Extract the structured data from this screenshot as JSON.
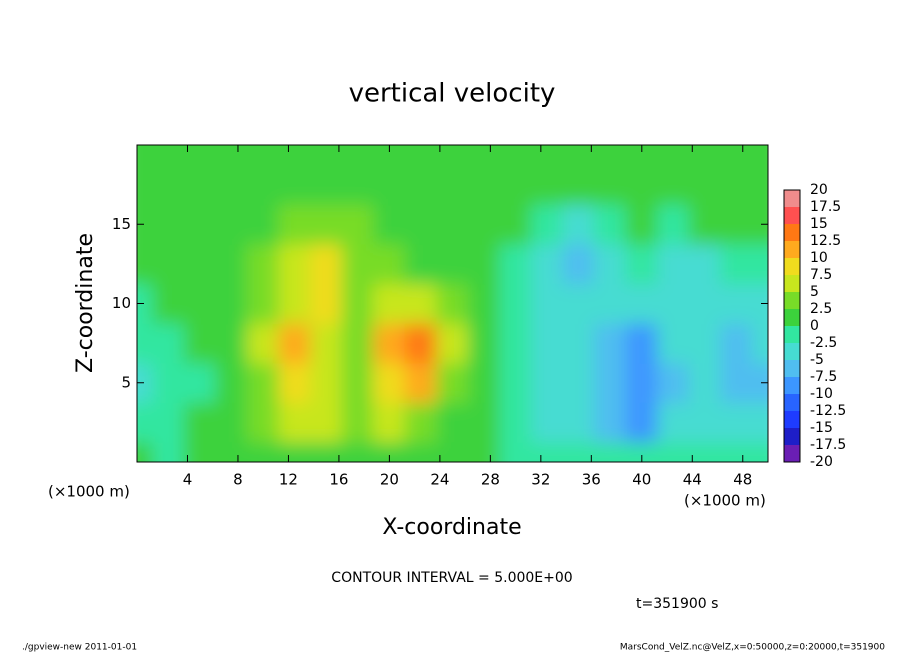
{
  "chart_data": {
    "type": "contour",
    "title": "vertical velocity",
    "xlabel": "X-coordinate",
    "ylabel": "Z-coordinate",
    "xunit": "(×1000 m)",
    "yunit": "(×1000 m)",
    "annotation": "CONTOUR INTERVAL = 5.000E+00",
    "time_label": "t=351900 s",
    "footer_left": "./gpview-new  2011-01-01",
    "footer_right": "MarsCond_VelZ.nc@VelZ,x=0:50000,z=0:20000,t=351900",
    "xlim": [
      0,
      50
    ],
    "ylim": [
      0,
      20
    ],
    "xticks": [
      4,
      8,
      12,
      16,
      20,
      24,
      28,
      32,
      36,
      40,
      44,
      48
    ],
    "yticks": [
      5,
      10,
      15
    ],
    "x": [
      0,
      2.5,
      5,
      7.5,
      10,
      12.5,
      15,
      17.5,
      20,
      22.5,
      25,
      27.5,
      30,
      32.5,
      35,
      37.5,
      40,
      42.5,
      45,
      47.5,
      50
    ],
    "y": [
      0,
      2.5,
      5,
      7.5,
      10,
      12.5,
      15,
      17.5,
      20
    ],
    "z": [
      [
        0,
        -1,
        0,
        1,
        1,
        2,
        2,
        1,
        2,
        1,
        1,
        0,
        -1,
        -1,
        -2,
        -2,
        -1,
        -1,
        -1,
        -1,
        -1
      ],
      [
        -1,
        -1,
        0,
        1,
        3,
        5,
        7,
        3,
        5,
        4,
        2,
        1,
        -1,
        -3,
        -4,
        -6,
        -8,
        -5,
        -4,
        -5,
        -4
      ],
      [
        -3,
        -2,
        -1,
        1,
        4,
        9,
        6,
        4,
        9,
        10,
        4,
        1,
        -1,
        -3,
        -4,
        -7,
        -10,
        -6,
        -5,
        -7,
        -6
      ],
      [
        -2,
        -1,
        0,
        1,
        5,
        11,
        5,
        4,
        12,
        13,
        5,
        1,
        -1,
        -3,
        -3,
        -6,
        -8,
        -5,
        -4,
        -6,
        -5
      ],
      [
        -1,
        0,
        0,
        1,
        3,
        6,
        8,
        4,
        6,
        6,
        3,
        1,
        -1,
        -3,
        -4,
        -5,
        -5,
        -3,
        -4,
        -5,
        -4
      ],
      [
        0,
        0,
        0,
        0,
        3,
        6,
        9,
        4,
        3,
        2,
        1,
        0,
        -1,
        -4,
        -6,
        -3,
        -2,
        -4,
        -3,
        -2,
        -1
      ],
      [
        0,
        0,
        0,
        0,
        1,
        3,
        4,
        3,
        2,
        1,
        0,
        0,
        0,
        -2,
        -3,
        -1,
        0,
        -1,
        0,
        0,
        0
      ],
      [
        0,
        0,
        0,
        0,
        0,
        1,
        1,
        1,
        0,
        0,
        0,
        0,
        0,
        0,
        0,
        0,
        0,
        0,
        0,
        0,
        0
      ],
      [
        0,
        0,
        0,
        0,
        0,
        0,
        0,
        0,
        0,
        0,
        0,
        0,
        0,
        0,
        0,
        0,
        0,
        0,
        0,
        0,
        0
      ]
    ],
    "levels": [
      -20,
      -17.5,
      -15,
      -12.5,
      -10,
      -7.5,
      -5,
      -2.5,
      0,
      2.5,
      5,
      7.5,
      10,
      12.5,
      15,
      17.5,
      20
    ],
    "colors": [
      "#6a1eb4",
      "#1e1ec8",
      "#1e3cff",
      "#2864ff",
      "#3c96ff",
      "#50bef0",
      "#46dcd2",
      "#32e6a0",
      "#3cd23c",
      "#78dc28",
      "#c8e61e",
      "#f0dc1e",
      "#ffaa1e",
      "#ff7814",
      "#ff5050",
      "#f08c8c"
    ]
  }
}
